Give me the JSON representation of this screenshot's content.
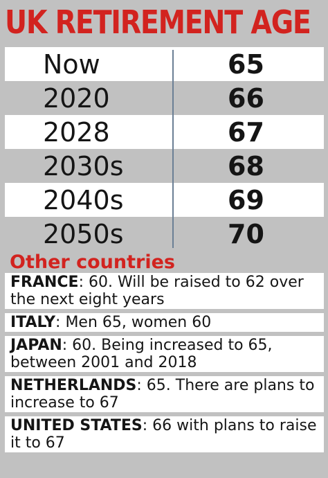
{
  "title": "UK RETIREMENT AGE",
  "chart_data": {
    "type": "table",
    "title": "UK RETIREMENT AGE",
    "rows": [
      {
        "when": "Now",
        "age": "65"
      },
      {
        "when": "2020",
        "age": "66"
      },
      {
        "when": "2028",
        "age": "67"
      },
      {
        "when": "2030s",
        "age": "68"
      },
      {
        "when": "2040s",
        "age": "69"
      },
      {
        "when": "2050s",
        "age": "70"
      }
    ]
  },
  "other": {
    "title": "Other countries",
    "countries": [
      {
        "name": "FRANCE",
        "text": ": 60. Will be raised to 62 over the next eight years"
      },
      {
        "name": "ITALY",
        "text": ": Men 65, women 60"
      },
      {
        "name": "JAPAN",
        "text": ": 60. Being increased to 65, between 2001 and 2018"
      },
      {
        "name": "NETHERLANDS",
        "text": ": 65. There are plans to increase to 67"
      },
      {
        "name": "UNITED STATES",
        "text": ": 66 with plans to raise it to 67"
      }
    ]
  },
  "colors": {
    "title_red": "#d2231f",
    "background_grey": "#c1c1c1",
    "row_white": "#ffffff",
    "divider_blue": "#6b7f95"
  }
}
